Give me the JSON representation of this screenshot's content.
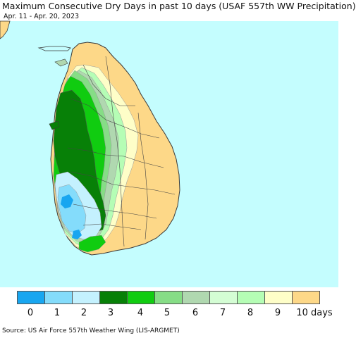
{
  "title": "Maximum Consecutive Dry Days in past 10 days (USAF 557th WW Precipitation)",
  "subtitle": "Apr. 11 - Apr. 20, 2023",
  "source": "Source: US Air Force 557th Weather Wing (LIS-ARGMET)",
  "legend": {
    "labels": [
      "0",
      "1",
      "2",
      "3",
      "4",
      "5",
      "6",
      "7",
      "8",
      "9",
      "10 days"
    ],
    "colors": [
      "#18a6f0",
      "#84dcfb",
      "#c4f1fe",
      "#078007",
      "#10cc10",
      "#86dd86",
      "#b0d8b0",
      "#d4fdd4",
      "#b5fdb5",
      "#fefec8",
      "#fdd888"
    ]
  },
  "map": {
    "ocean_color": "#c4fdfe",
    "land_outline_color": "#3a3a3a"
  }
}
